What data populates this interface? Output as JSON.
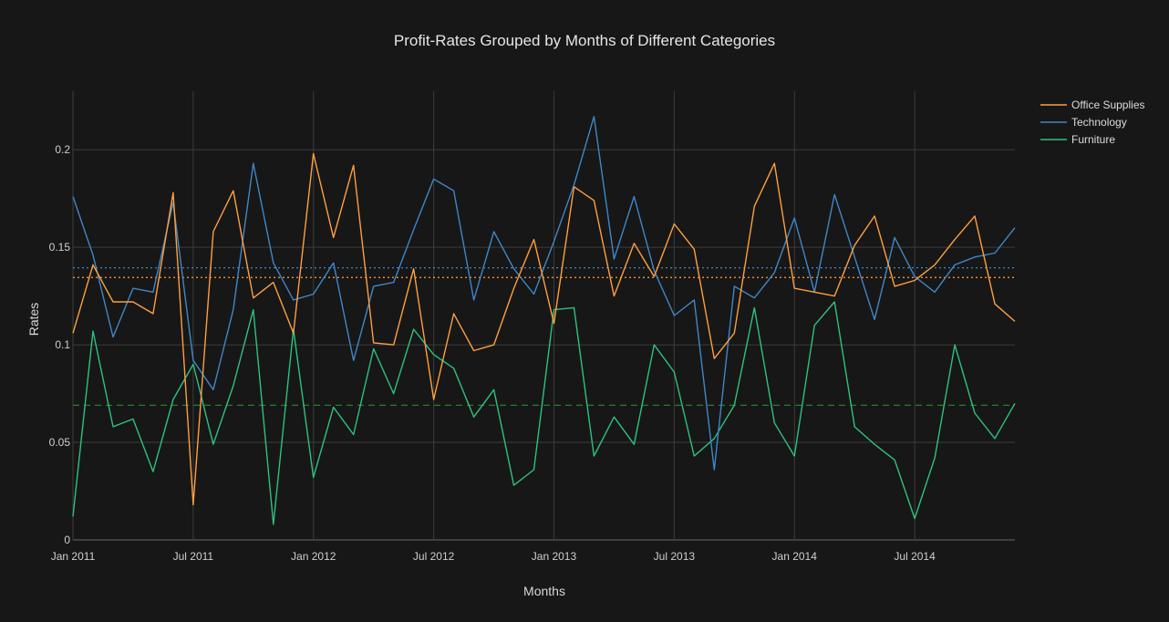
{
  "chart_data": {
    "type": "line",
    "title": "Profit-Rates Grouped by Months of Different Categories",
    "xlabel": "Months",
    "ylabel": "Rates",
    "ylim": [
      0,
      0.23
    ],
    "xlim": [
      "2011-01-01",
      "2014-12-01"
    ],
    "y_ticks": [
      0,
      0.05,
      0.1,
      0.15,
      0.2
    ],
    "y_tick_labels": [
      "0",
      "0.05",
      "0.1",
      "0.15",
      "0.2"
    ],
    "x_ticks": [
      "2011-01-01",
      "2011-07-01",
      "2012-01-01",
      "2012-07-01",
      "2013-01-01",
      "2013-07-01",
      "2014-01-01",
      "2014-07-01"
    ],
    "x_tick_labels": [
      "Jan 2011",
      "Jul 2011",
      "Jan 2012",
      "Jul 2012",
      "Jan 2013",
      "Jul 2013",
      "Jan 2014",
      "Jul 2014"
    ],
    "grid": true,
    "legend_position": "top-right",
    "x": [
      "2011-01",
      "2011-02",
      "2011-03",
      "2011-04",
      "2011-05",
      "2011-06",
      "2011-07",
      "2011-08",
      "2011-09",
      "2011-10",
      "2011-11",
      "2011-12",
      "2012-01",
      "2012-02",
      "2012-03",
      "2012-04",
      "2012-05",
      "2012-06",
      "2012-07",
      "2012-08",
      "2012-09",
      "2012-10",
      "2012-11",
      "2012-12",
      "2013-01",
      "2013-02",
      "2013-03",
      "2013-04",
      "2013-05",
      "2013-06",
      "2013-07",
      "2013-08",
      "2013-09",
      "2013-10",
      "2013-11",
      "2013-12",
      "2014-01",
      "2014-02",
      "2014-03",
      "2014-04",
      "2014-05",
      "2014-06",
      "2014-07",
      "2014-08",
      "2014-09",
      "2014-10",
      "2014-11",
      "2014-12"
    ],
    "series": [
      {
        "name": "Office Supplies",
        "color": "#ff9f40",
        "values": [
          0.106,
          0.141,
          0.122,
          0.122,
          0.116,
          0.178,
          0.018,
          0.158,
          0.179,
          0.124,
          0.132,
          0.106,
          0.198,
          0.155,
          0.192,
          0.101,
          0.1,
          0.139,
          0.072,
          0.116,
          0.097,
          0.1,
          0.129,
          0.154,
          0.111,
          0.181,
          0.174,
          0.125,
          0.152,
          0.135,
          0.162,
          0.149,
          0.093,
          0.106,
          0.171,
          0.193,
          0.129,
          0.127,
          0.125,
          0.151,
          0.166,
          0.13,
          0.133,
          0.141,
          0.154,
          0.166,
          0.121,
          0.112
        ]
      },
      {
        "name": "Technology",
        "color": "#3e87c8",
        "values": [
          0.176,
          0.146,
          0.104,
          0.129,
          0.127,
          0.173,
          0.092,
          0.077,
          0.118,
          0.193,
          0.142,
          0.123,
          0.126,
          0.142,
          0.092,
          0.13,
          0.132,
          0.159,
          0.185,
          0.179,
          0.123,
          0.158,
          0.139,
          0.126,
          0.153,
          0.182,
          0.217,
          0.144,
          0.176,
          0.138,
          0.115,
          0.123,
          0.036,
          0.13,
          0.124,
          0.137,
          0.165,
          0.127,
          0.177,
          0.145,
          0.113,
          0.155,
          0.135,
          0.127,
          0.141,
          0.145,
          0.147,
          0.16
        ]
      },
      {
        "name": "Furniture",
        "color": "#2ec27e",
        "values": [
          0.012,
          0.107,
          0.058,
          0.062,
          0.035,
          0.072,
          0.09,
          0.049,
          0.079,
          0.118,
          0.008,
          0.108,
          0.032,
          0.068,
          0.054,
          0.098,
          0.075,
          0.108,
          0.095,
          0.088,
          0.063,
          0.077,
          0.028,
          0.036,
          0.118,
          0.119,
          0.043,
          0.063,
          0.049,
          0.1,
          0.086,
          0.043,
          0.052,
          0.069,
          0.119,
          0.06,
          0.043,
          0.11,
          0.122,
          0.058,
          0.049,
          0.041,
          0.011,
          0.042,
          0.1,
          0.065,
          0.052,
          0.07
        ]
      }
    ],
    "reference_lines": [
      {
        "series": "Technology",
        "value": 0.1395,
        "style": "dotted",
        "color": "#3e87c8"
      },
      {
        "series": "Office Supplies",
        "value": 0.1345,
        "style": "dotted",
        "color": "#ff9f40"
      },
      {
        "series": "Furniture",
        "value": 0.069,
        "style": "dashed",
        "color": "#2a7a2a"
      }
    ]
  }
}
